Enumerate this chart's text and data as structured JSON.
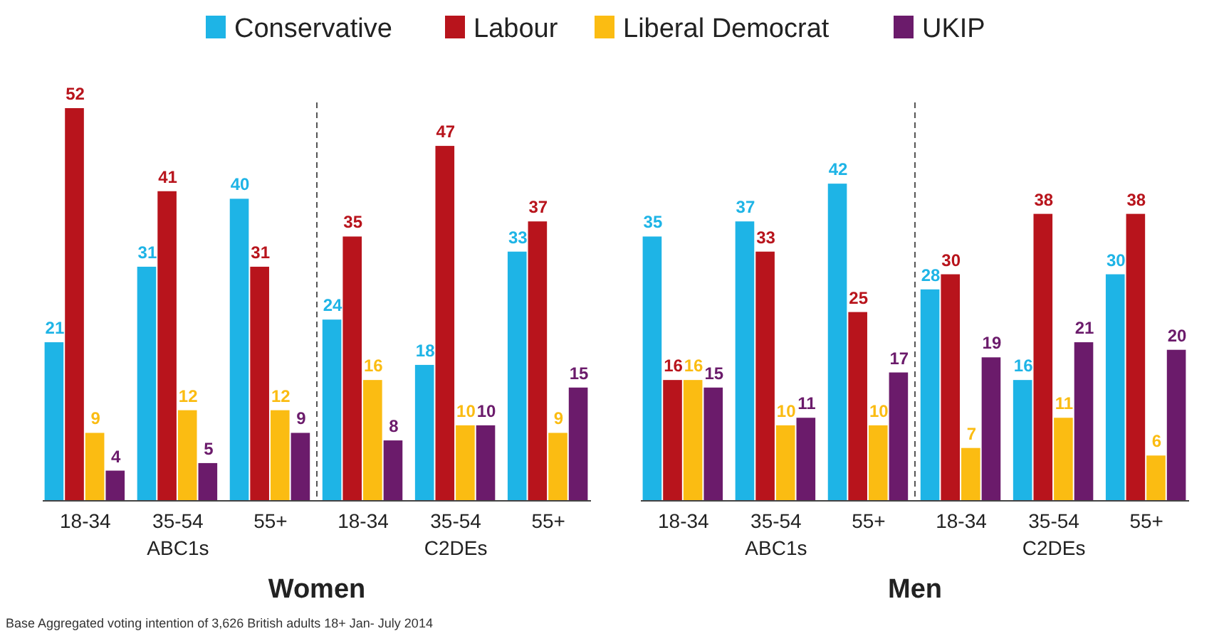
{
  "chart_data": [
    {
      "type": "bar",
      "xlabel": "Women",
      "categories": [
        "18-34",
        "35-54",
        "55+",
        "18-34",
        "35-54",
        "55+"
      ],
      "series": [
        {
          "name": "Conservative",
          "color": "#1eb4e6",
          "values": [
            21,
            31,
            40,
            24,
            18,
            33
          ]
        },
        {
          "name": "Labour",
          "color": "#b8141c",
          "values": [
            52,
            41,
            31,
            35,
            47,
            37
          ]
        },
        {
          "name": "Liberal Democrat",
          "color": "#fbbc12",
          "values": [
            9,
            12,
            12,
            16,
            10,
            9
          ]
        },
        {
          "name": "UKIP",
          "color": "#6b1b6b",
          "values": [
            4,
            5,
            9,
            8,
            10,
            15
          ]
        }
      ],
      "tick_labels": "x",
      "data_labels": true,
      "legend": "top",
      "annotations": [
        "ABC1s",
        "C2DEs",
        "Base Aggregated voting intention of 3,626 British adults 18+ Jan- July 2014"
      ]
    },
    {
      "type": "bar",
      "xlabel": "Men",
      "categories": [
        "18-34",
        "35-54",
        "55+",
        "18-34",
        "35-54",
        "55+"
      ],
      "series": [
        {
          "color": "#1eb4e6",
          "values": [
            35,
            37,
            42,
            28,
            16,
            30
          ]
        },
        {
          "color": "#b8141c",
          "values": [
            16,
            33,
            25,
            30,
            38,
            38
          ]
        },
        {
          "color": "#fbbc12",
          "values": [
            16,
            10,
            10,
            7,
            11,
            6
          ]
        },
        {
          "color": "#6b1b6b",
          "values": [
            15,
            11,
            17,
            19,
            21,
            20
          ]
        }
      ],
      "tick_labels": "x",
      "data_labels": true,
      "legend": false,
      "annotations": [
        "ABC1s",
        "C2DEs"
      ]
    }
  ]
}
